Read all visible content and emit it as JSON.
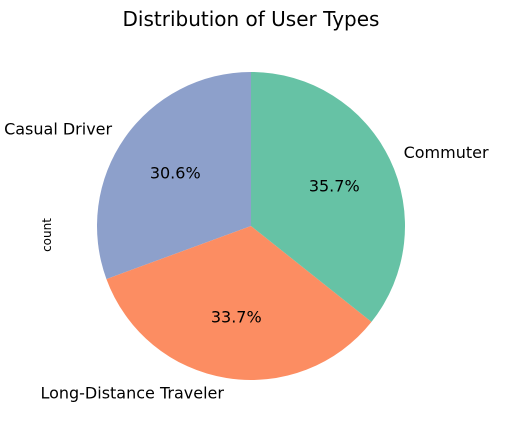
{
  "chart_data": {
    "type": "pie",
    "title": "Distribution of User Types",
    "ylabel": "count",
    "slices": [
      {
        "label": "Casual Driver",
        "value": 30.6,
        "pct_label": "30.6%",
        "color": "#8da0cb"
      },
      {
        "label": "Long-Distance Traveler",
        "value": 33.7,
        "pct_label": "33.7%",
        "color": "#fc8d62"
      },
      {
        "label": "Commuter",
        "value": 35.7,
        "pct_label": "35.7%",
        "color": "#66c2a5"
      }
    ]
  }
}
